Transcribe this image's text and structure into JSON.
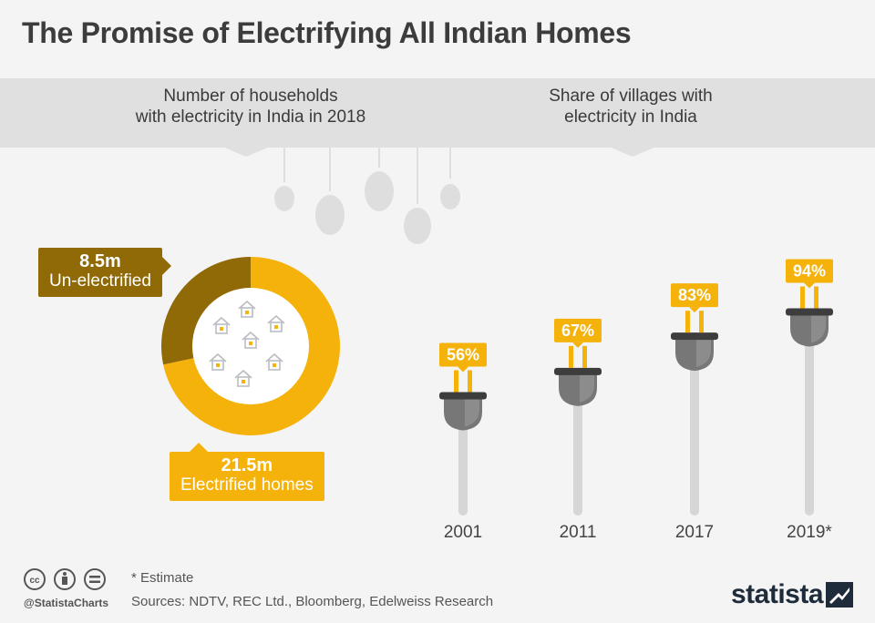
{
  "title": "The Promise of Electrifying All Indian Homes",
  "left_header": {
    "line1": "Number of households",
    "line2": "with electricity in India in 2018"
  },
  "right_header": {
    "line1": "Share of villages with",
    "line2": "electricity in India"
  },
  "colors": {
    "electrified": "#f4b20b",
    "un_electrified": "#8f6a06",
    "plug_body": "#777777",
    "cord": "#d6d6d6",
    "band": "#e0e0e0"
  },
  "chart_data": [
    {
      "type": "pie",
      "title": "Number of households with electricity in India in 2018",
      "unit": "m",
      "slices": [
        {
          "label": "Un-electrified",
          "value": 8.5,
          "value_label": "8.5m",
          "color": "#8f6a06"
        },
        {
          "label": "Electrified homes",
          "value": 21.5,
          "value_label": "21.5m",
          "color": "#f4b20b"
        }
      ],
      "donut": true
    },
    {
      "type": "bar",
      "title": "Share of villages with electricity in India",
      "categories": [
        "2001",
        "2011",
        "2017",
        "2019*"
      ],
      "values": [
        56,
        67,
        83,
        94
      ],
      "value_labels": [
        "56%",
        "67%",
        "83%",
        "94%"
      ],
      "ylim": [
        0,
        100
      ]
    }
  ],
  "footer": {
    "note": "* Estimate",
    "sources": "Sources: NDTV, REC Ltd., Bloomberg, Edelweiss Research",
    "handle": "@StatistaCharts",
    "brand": "statista"
  },
  "icons": [
    "creative-commons-icon",
    "attribution-icon",
    "no-derivatives-icon",
    "statista-logo-icon",
    "house-icon",
    "light-bulb-icon",
    "plug-icon"
  ]
}
